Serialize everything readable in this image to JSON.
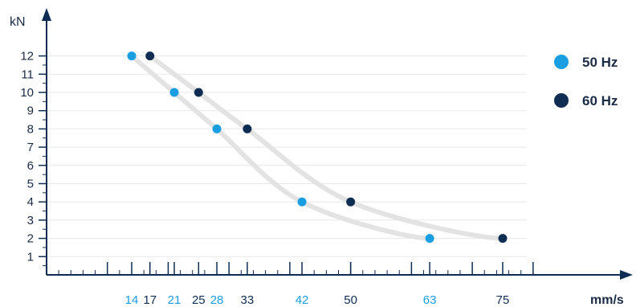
{
  "chart_data": {
    "type": "scatter",
    "ylabel": "kN",
    "xlabel": "mm/s",
    "ylim": [
      0,
      12
    ],
    "xlim": [
      0,
      80
    ],
    "yticks": [
      1,
      2,
      3,
      4,
      5,
      6,
      7,
      8,
      9,
      10,
      11,
      12
    ],
    "grid": "horizontal",
    "legend_position": "right",
    "series": [
      {
        "name": "50 Hz",
        "color": "#1a9ee2",
        "points": [
          {
            "x": 14,
            "y": 12
          },
          {
            "x": 21,
            "y": 10
          },
          {
            "x": 28,
            "y": 8
          },
          {
            "x": 42,
            "y": 4
          },
          {
            "x": 63,
            "y": 2
          }
        ]
      },
      {
        "name": "60 Hz",
        "color": "#0f2d52",
        "points": [
          {
            "x": 17,
            "y": 12
          },
          {
            "x": 25,
            "y": 10
          },
          {
            "x": 33,
            "y": 8
          },
          {
            "x": 50,
            "y": 4
          },
          {
            "x": 75,
            "y": 2
          }
        ]
      }
    ]
  }
}
